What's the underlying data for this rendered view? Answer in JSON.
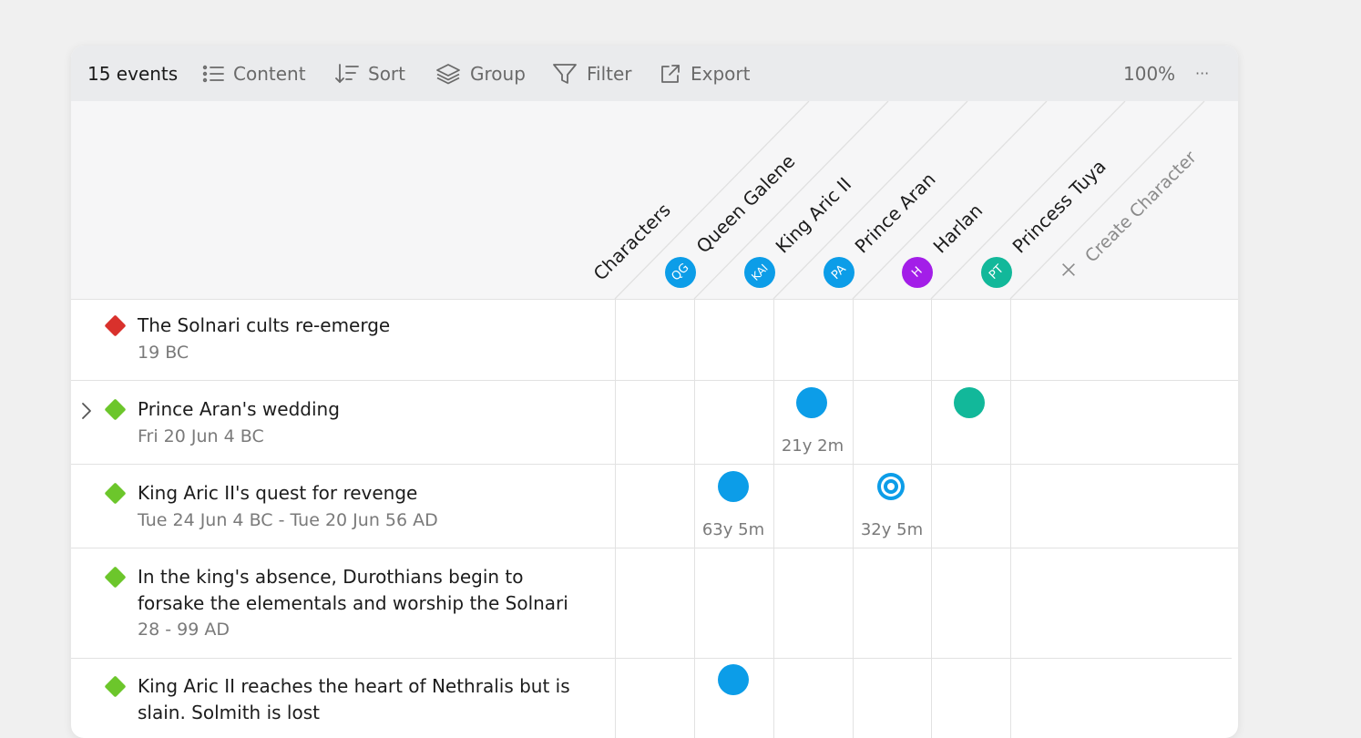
{
  "toolbar": {
    "event_count": "15 events",
    "content_label": "Content",
    "sort_label": "Sort",
    "group_label": "Group",
    "filter_label": "Filter",
    "export_label": "Export",
    "zoom": "100%",
    "more": "···"
  },
  "columns": {
    "characters_label": "Characters",
    "create_label": "Create Character",
    "create_icon": "plus-icon",
    "items": [
      {
        "name": "Queen Galene",
        "initials": "QG",
        "color": "#0c9de8"
      },
      {
        "name": "King Aric II",
        "initials": "KAI",
        "color": "#0c9de8"
      },
      {
        "name": "Prince Aran",
        "initials": "PA",
        "color": "#0c9de8"
      },
      {
        "name": "Harlan",
        "initials": "H",
        "color": "#a31ee8"
      },
      {
        "name": "Princess Tuya",
        "initials": "PT",
        "color": "#12b89a"
      }
    ]
  },
  "events": [
    {
      "title": "The Solnari cults re-emerge",
      "date": "19 BC",
      "color": "#d9312c"
    },
    {
      "title": "Prince Aran's wedding",
      "date": "Fri 20 Jun 4 BC",
      "color": "#6cc62b",
      "durations": [
        {
          "col": 2,
          "text": "21y 2m"
        }
      ]
    },
    {
      "title": "King Aric II's quest for revenge",
      "date": "Tue 24 Jun 4 BC - Tue 20 Jun 56 AD",
      "color": "#6cc62b",
      "durations": [
        {
          "col": 1,
          "text": "63y 5m"
        },
        {
          "col": 3,
          "text": "32y 5m"
        }
      ]
    },
    {
      "title_line1": "In the king's absence, Durothians begin to",
      "title_line2": "forsake the elementals and worship the Solnari",
      "date": "28 - 99 AD",
      "color": "#6cc62b"
    },
    {
      "title_line1": "King Aric II reaches the heart of Nethralis but is",
      "title_line2": "slain. Solmith is lost",
      "color": "#6cc62b"
    }
  ],
  "colors": {
    "accent_blue": "#0c9de8",
    "teal": "#12b89a",
    "purple": "#a31ee8",
    "milestone_red": "#d9312c",
    "milestone_green": "#6cc62b"
  }
}
